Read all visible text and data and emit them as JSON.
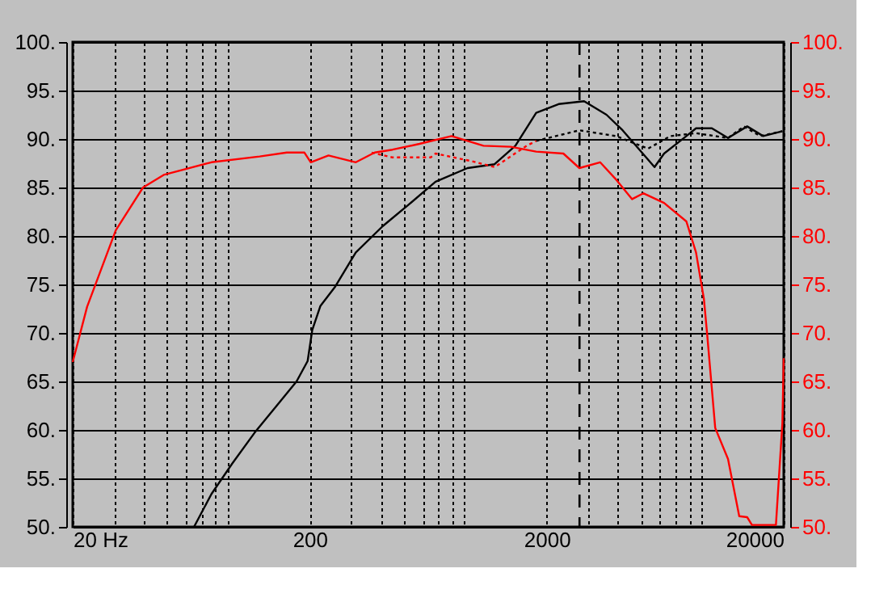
{
  "chart_data": {
    "type": "line",
    "log": "x",
    "xlim": [
      20,
      20000
    ],
    "xticks": [
      {
        "value": 20,
        "label": "20 Hz"
      },
      {
        "value": 30,
        "label": null
      },
      {
        "value": 40,
        "label": null
      },
      {
        "value": 50,
        "label": null
      },
      {
        "value": 60,
        "label": null
      },
      {
        "value": 70,
        "label": null
      },
      {
        "value": 80,
        "label": null
      },
      {
        "value": 90,
        "label": null
      },
      200,
      {
        "value": 300,
        "label": null
      },
      {
        "value": 400,
        "label": null
      },
      {
        "value": 500,
        "label": null
      },
      {
        "value": 600,
        "label": null
      },
      {
        "value": 700,
        "label": null
      },
      {
        "value": 800,
        "label": null
      },
      {
        "value": 900,
        "label": null
      },
      2000,
      {
        "value": 3000,
        "label": null
      },
      {
        "value": 4000,
        "label": null
      },
      {
        "value": 5000,
        "label": null
      },
      {
        "value": 6000,
        "label": null
      },
      {
        "value": 7000,
        "label": null
      },
      {
        "value": 8000,
        "label": null
      },
      {
        "value": 9000,
        "label": null
      },
      20000
    ],
    "ylim": [
      50,
      100
    ],
    "yticks": [
      {
        "value": 50,
        "label": "50."
      },
      {
        "value": 55,
        "label": "55."
      },
      {
        "value": 60,
        "label": "60."
      },
      {
        "value": 65,
        "label": "65."
      },
      {
        "value": 70,
        "label": "70."
      },
      {
        "value": 75,
        "label": "75."
      },
      {
        "value": 80,
        "label": "80."
      },
      {
        "value": 85,
        "label": "85."
      },
      {
        "value": 90,
        "label": "90."
      },
      {
        "value": 95,
        "label": "95."
      },
      {
        "value": 100,
        "label": "100."
      }
    ],
    "y2lim": [
      50,
      100
    ],
    "y2ticks": [
      {
        "value": 50,
        "label": "50."
      },
      {
        "value": 55,
        "label": "55."
      },
      {
        "value": 60,
        "label": "60."
      },
      {
        "value": 65,
        "label": "65."
      },
      {
        "value": 70,
        "label": "70."
      },
      {
        "value": 75,
        "label": "75."
      },
      {
        "value": 80,
        "label": "80."
      },
      {
        "value": 85,
        "label": "85."
      },
      {
        "value": 90,
        "label": "90."
      },
      {
        "value": 95,
        "label": "95."
      },
      {
        "value": 100,
        "label": "100."
      }
    ],
    "grid": true,
    "marker": "none",
    "ref_lines": [
      {
        "axis": "x",
        "value": 2750,
        "label": null,
        "color": "#000000",
        "line_style": "dashed"
      }
    ],
    "series": [
      {
        "color": "#000000",
        "line_style": "solid",
        "x": [
          65,
          77,
          94,
          117,
          144,
          176,
          196,
          205,
          222,
          255,
          313,
          406,
          521,
          679,
          711,
          926,
          1205,
          1475,
          1805,
          2245,
          2876,
          3575,
          4180,
          5700,
          6255,
          7767,
          8530,
          9950,
          11640,
          14020,
          16370,
          19740
        ],
        "values": [
          50,
          53.4,
          56.5,
          59.7,
          62.4,
          65,
          67.1,
          70.3,
          72.8,
          74.7,
          78.3,
          81,
          83.2,
          85.6,
          85.8,
          87,
          87.4,
          89.3,
          92.7,
          93.6,
          93.9,
          92.5,
          90.9,
          87.1,
          88.5,
          90.3,
          91.1,
          91.1,
          90.1,
          91.3,
          90.3,
          90.8
        ]
      },
      {
        "color": "#000000",
        "line_style": "dotted",
        "x": [
          1805,
          2750,
          3930,
          5350,
          6650,
          8530,
          11640,
          13590,
          15890,
          19740
        ],
        "values": [
          89.8,
          90.9,
          90.3,
          89,
          90.3,
          90.6,
          90.1,
          91.3,
          90.3,
          90.8
        ]
      },
      {
        "color": "#ff0000",
        "line_style": "solid",
        "axis": "y2",
        "x": [
          20,
          23,
          30.4,
          39.6,
          48.4,
          77,
          123,
          160,
          190,
          202,
          240,
          313,
          376,
          447,
          581,
          793,
          1082,
          1409,
          1805,
          2351,
          2747,
          3360,
          3930,
          4585,
          5110,
          6255,
          7767,
          8530,
          9210,
          9510,
          10280,
          11640,
          12980,
          14020,
          14690,
          16900,
          18540,
          19740,
          20000
        ],
        "values": [
          67,
          72.7,
          80.6,
          85,
          86.3,
          87.6,
          88.2,
          88.6,
          88.6,
          87.6,
          88.3,
          87.6,
          88.6,
          88.9,
          89.5,
          90.3,
          89.3,
          89.2,
          88.7,
          88.5,
          87,
          87.6,
          85.8,
          83.8,
          84.4,
          83.4,
          81.5,
          78.3,
          73.5,
          69.8,
          60.2,
          57,
          51.1,
          51,
          50.2,
          50.2,
          50.2,
          60.7,
          67.4
        ]
      },
      {
        "color": "#ff0000",
        "line_style": "dotted",
        "axis": "y2",
        "x": [
          365,
          447,
          648,
          679,
          970,
          1205,
          1409,
          1645,
          1805
        ],
        "values": [
          88.6,
          88.1,
          88.1,
          88.5,
          87.7,
          87.1,
          88.2,
          89.3,
          89.8
        ]
      }
    ]
  }
}
